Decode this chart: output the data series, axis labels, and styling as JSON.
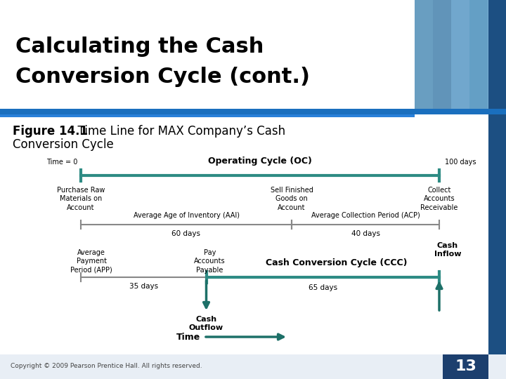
{
  "title_line1": "Calculating the Cash",
  "title_line2": "Conversion Cycle (cont.)",
  "figure_label": "Figure 14.1",
  "figure_rest": "  Time Line for MAX Company’s Cash",
  "figure_line2": "Conversion Cycle",
  "background_color": "#ffffff",
  "header_bg": "#1c4f82",
  "teal_color": "#2e8b84",
  "dark_teal": "#1d7068",
  "gray_line": "#888888",
  "copyright": "Copyright © 2009 Pearson Prentice Hall. All rights reserved.",
  "page_number": "13",
  "page_num_bg": "#1c3f6e",
  "separator_blue": "#1a6fbe",
  "right_bar_bg": "#1c4f82",
  "bottom_bar_bg": "#e8eef5"
}
